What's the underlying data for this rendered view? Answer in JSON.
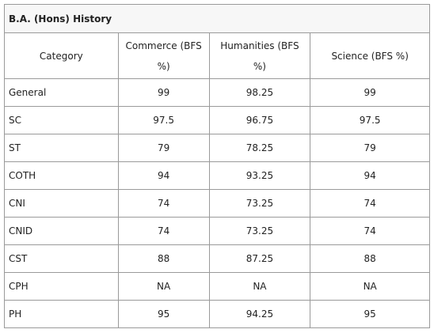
{
  "table": {
    "title": "B.A. (Hons) History",
    "header": [
      "Category",
      "Commerce (BFS %)",
      "Humanities (BFS %)",
      "Science (BFS %)"
    ],
    "rows": [
      [
        "General",
        "99",
        "98.25",
        "99"
      ],
      [
        "SC",
        "97.5",
        "96.75",
        "97.5"
      ],
      [
        "ST",
        "79",
        "78.25",
        "79"
      ],
      [
        "COTH",
        "94",
        "93.25",
        "94"
      ],
      [
        "CNI",
        "74",
        "73.25",
        "74"
      ],
      [
        "CNID",
        "74",
        "73.25",
        "74"
      ],
      [
        "CST",
        "88",
        "87.25",
        "88"
      ],
      [
        "CPH",
        "NA",
        "NA",
        "NA"
      ],
      [
        "PH",
        "95",
        "94.25",
        "95"
      ]
    ]
  }
}
